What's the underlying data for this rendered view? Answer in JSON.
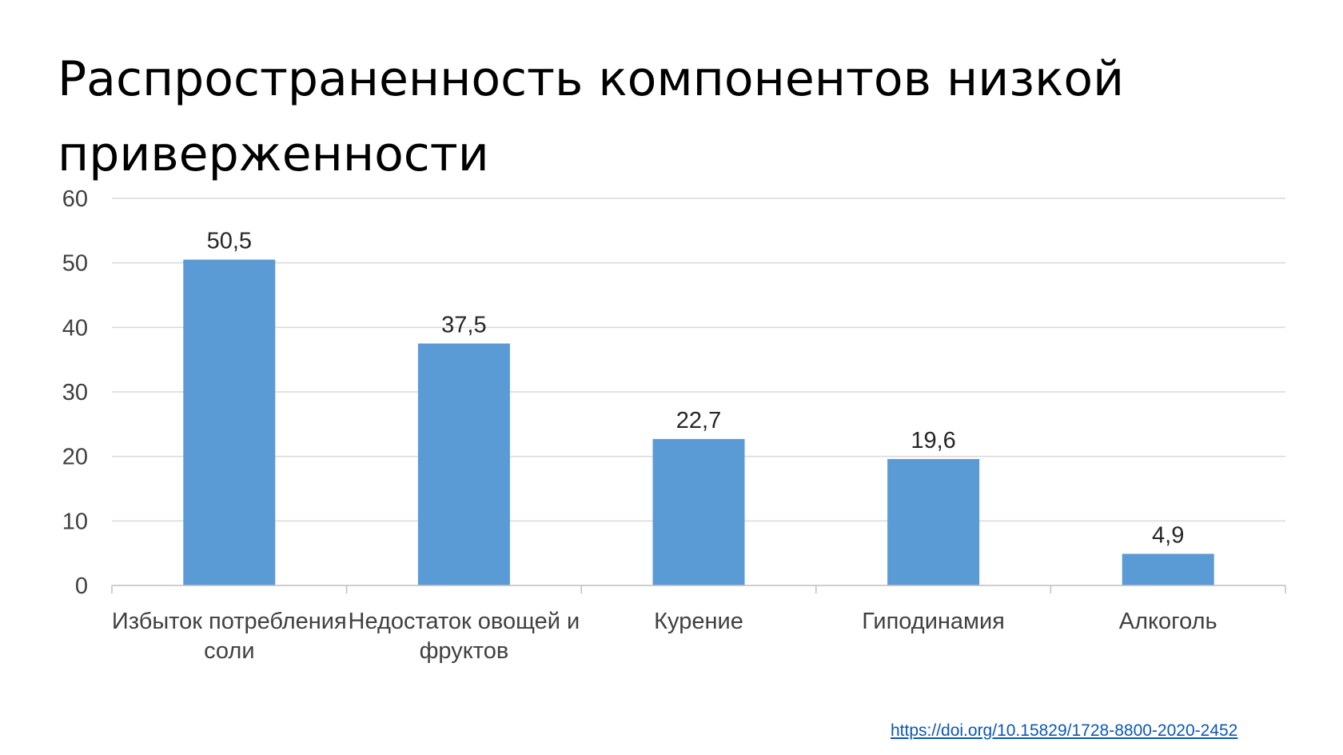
{
  "title": "Распространенность компонентов низкой приверженности",
  "source_link": "https://doi.org/10.15829/1728-8800-2020-2452",
  "colors": {
    "bar": "#5b9bd5",
    "gridline": "#d9d9d9",
    "axis": "#bfbfbf",
    "link": "#0b57b8"
  },
  "chart_data": {
    "type": "bar",
    "categories": [
      "Избыток потребления соли",
      "Недостаток овощей и фруктов",
      "Курение",
      "Гиподинамия",
      "Алкоголь"
    ],
    "values": [
      50.5,
      37.5,
      22.7,
      19.6,
      4.9
    ],
    "data_labels": [
      "50,5",
      "37,5",
      "22,7",
      "19,6",
      "4,9"
    ],
    "ylim": [
      0,
      60
    ],
    "yticks": [
      0,
      10,
      20,
      30,
      40,
      50,
      60
    ],
    "xlabel": "",
    "ylabel": "",
    "grid": true,
    "legend": "none"
  }
}
